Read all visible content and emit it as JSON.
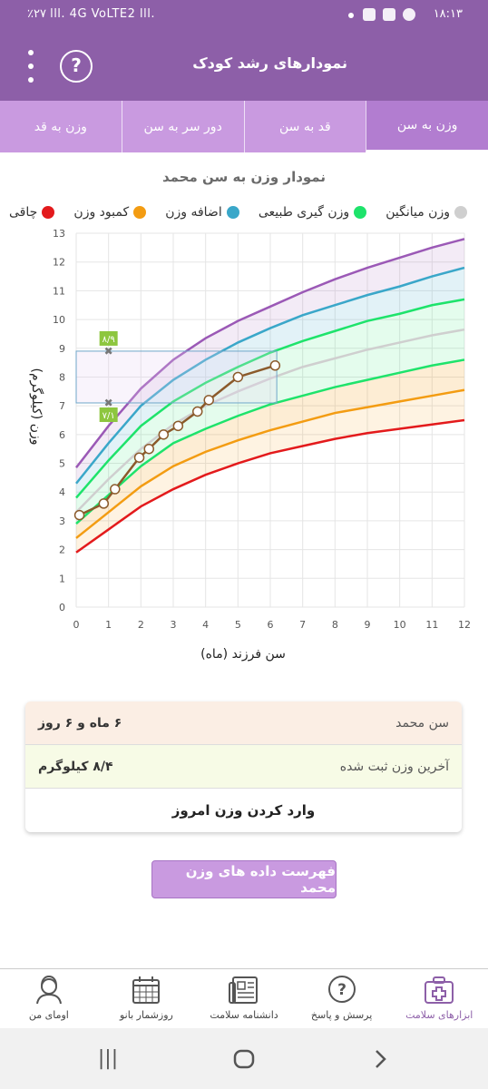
{
  "status_bar": {
    "time": "۱۸:۱۳",
    "left_text": "٪۲۷ lll. 4G VoLTE2 lll."
  },
  "app_bar": {
    "title": "نمودارهای رشد کودک",
    "help_label": "?"
  },
  "tabs": [
    {
      "label": "وزن به سن",
      "active": true
    },
    {
      "label": "قد به سن",
      "active": false
    },
    {
      "label": "دور سر به سن",
      "active": false
    },
    {
      "label": "وزن به قد",
      "active": false
    }
  ],
  "chart_title": "نمودار وزن به سن محمد",
  "legend": [
    {
      "label": "چاقی",
      "color": "#e31a1c"
    },
    {
      "label": "کمبود وزن",
      "color": "#f39c12"
    },
    {
      "label": "اضافه وزن",
      "color": "#3aa7c9"
    },
    {
      "label": "وزن گیری طبیعی",
      "color": "#1ee36b"
    },
    {
      "label": "وزن میانگین",
      "color": "#cfcfcf"
    }
  ],
  "chart_data": {
    "type": "line",
    "xlabel": "سن فرزند (ماه)",
    "ylabel": "وزن (کیلوگرم)",
    "xlim": [
      0,
      12
    ],
    "ylim": [
      0,
      13
    ],
    "x_ticks": [
      "0",
      "1",
      "2",
      "3",
      "4",
      "5",
      "6",
      "7",
      "8",
      "9",
      "10",
      "11",
      "12"
    ],
    "y_ticks": [
      "0",
      "1",
      "2",
      "3",
      "4",
      "5",
      "6",
      "7",
      "8",
      "9",
      "10",
      "11",
      "12",
      "13"
    ],
    "grid": true,
    "x": [
      0,
      1,
      2,
      3,
      4,
      5,
      6,
      7,
      8,
      9,
      10,
      11,
      12
    ],
    "series": [
      {
        "color": "#e31a1c",
        "values": [
          1.9,
          2.7,
          3.5,
          4.1,
          4.6,
          5.0,
          5.35,
          5.6,
          5.85,
          6.05,
          6.2,
          6.35,
          6.5
        ]
      },
      {
        "color": "#f39c12",
        "values": [
          2.4,
          3.3,
          4.2,
          4.9,
          5.4,
          5.8,
          6.15,
          6.45,
          6.75,
          6.95,
          7.15,
          7.35,
          7.55
        ]
      },
      {
        "color": "#1ee36b",
        "values": [
          2.9,
          3.9,
          4.9,
          5.7,
          6.2,
          6.65,
          7.05,
          7.35,
          7.65,
          7.9,
          8.15,
          8.4,
          8.6
        ]
      },
      {
        "color": "#cfcfcf",
        "values": [
          3.3,
          4.45,
          5.5,
          6.35,
          7.0,
          7.5,
          7.95,
          8.35,
          8.65,
          8.95,
          9.2,
          9.45,
          9.65
        ]
      },
      {
        "color": "#1ee36b",
        "values": [
          3.8,
          5.1,
          6.3,
          7.15,
          7.8,
          8.35,
          8.85,
          9.25,
          9.6,
          9.95,
          10.2,
          10.5,
          10.7
        ]
      },
      {
        "color": "#3aa7c9",
        "values": [
          4.3,
          5.7,
          7.0,
          7.9,
          8.6,
          9.2,
          9.7,
          10.15,
          10.5,
          10.85,
          11.15,
          11.5,
          11.8
        ]
      },
      {
        "color": "#9b59b6",
        "values": [
          4.85,
          6.3,
          7.6,
          8.6,
          9.35,
          9.95,
          10.45,
          10.95,
          11.4,
          11.8,
          12.15,
          12.5,
          12.8
        ]
      }
    ],
    "child_weights": {
      "color": "#8b5a2b",
      "x": [
        0.1,
        0.85,
        1.2,
        1.95,
        2.25,
        2.7,
        3.15,
        3.75,
        4.1,
        5.0,
        6.15
      ],
      "y": [
        3.2,
        3.6,
        4.1,
        5.2,
        5.5,
        6.0,
        6.3,
        6.8,
        7.2,
        8.0,
        8.4
      ]
    },
    "range_markers": {
      "x_month": 1,
      "x_box": [
        0,
        6.2
      ],
      "low": 7.1,
      "high": 8.9,
      "low_label": "۷/۱",
      "high_label": "۸/۹"
    }
  },
  "info": {
    "age_label": "سن محمد",
    "age_value": "۶ ماه و ۶ روز",
    "weight_label": "آخرین وزن ثبت شده",
    "weight_value": "۸/۴ کیلوگرم",
    "enter_label": "وارد کردن وزن امروز"
  },
  "list_button": "فهرست داده های وزن محمد",
  "bottom_nav": [
    {
      "label": "ابزارهای سلامت",
      "icon": "medical-kit-icon",
      "active": true
    },
    {
      "label": "پرسش و پاسخ",
      "icon": "question-icon",
      "active": false
    },
    {
      "label": "دانشنامه سلامت",
      "icon": "newspaper-icon",
      "active": false
    },
    {
      "label": "روزشمار بانو",
      "icon": "calendar-icon",
      "active": false
    },
    {
      "label": "اومای من",
      "icon": "profile-icon",
      "active": false
    }
  ]
}
